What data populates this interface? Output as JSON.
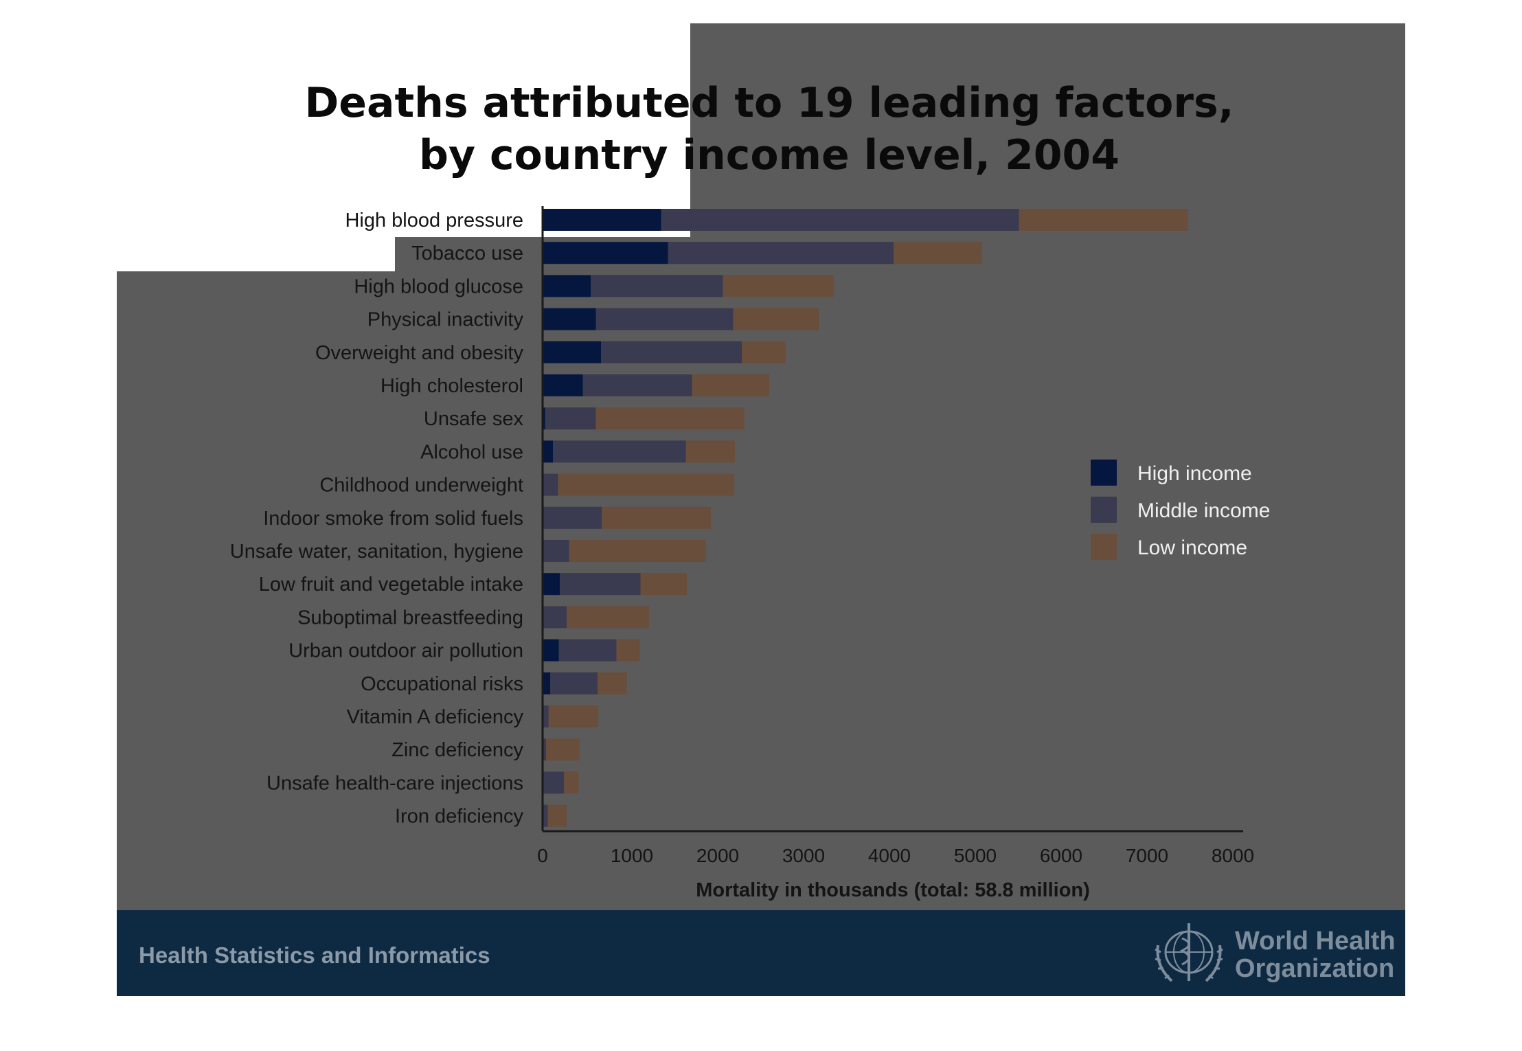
{
  "title_line1": "Deaths attributed to 19 leading factors,",
  "title_line2": "by country income level, 2004",
  "footer": {
    "left_text": "Health Statistics and Informatics",
    "org_line1": "World Health",
    "org_line2": "Organization"
  },
  "colors": {
    "high_income": "#05163f",
    "middle_income": "#3a3a50",
    "low_income": "#6a4e3c",
    "background_panel": "#5b5b5b",
    "footer_band": "#0e2a43"
  },
  "chart_data": {
    "type": "bar",
    "orientation": "horizontal",
    "stacked": true,
    "categories": [
      "High blood pressure",
      "Tobacco use",
      "High blood glucose",
      "Physical inactivity",
      "Overweight and obesity",
      "High cholesterol",
      "Unsafe sex",
      "Alcohol use",
      "Childhood underweight",
      "Indoor smoke from solid fuels",
      "Unsafe water, sanitation, hygiene",
      "Low fruit and vegetable intake",
      "Suboptimal breastfeeding",
      "Urban outdoor air pollution",
      "Occupational risks",
      "Vitamin A deficiency",
      "Zinc deficiency",
      "Unsafe health-care injections",
      "Iron deficiency"
    ],
    "series": [
      {
        "name": "High income",
        "values": [
          1380,
          1460,
          560,
          620,
          680,
          470,
          30,
          120,
          10,
          10,
          10,
          200,
          10,
          190,
          90,
          10,
          10,
          10,
          10
        ]
      },
      {
        "name": "Middle income",
        "values": [
          4170,
          2630,
          1540,
          1600,
          1640,
          1270,
          590,
          1550,
          170,
          680,
          300,
          940,
          270,
          670,
          550,
          60,
          30,
          240,
          50
        ]
      },
      {
        "name": "Low income",
        "values": [
          1970,
          1030,
          1290,
          1000,
          510,
          900,
          1730,
          570,
          2050,
          1270,
          1590,
          540,
          960,
          270,
          340,
          580,
          390,
          170,
          220
        ]
      }
    ],
    "x_ticks": [
      "0",
      "1000",
      "2000",
      "3000",
      "4000",
      "5000",
      "6000",
      "7000",
      "8000"
    ],
    "xlim": [
      0,
      8200
    ],
    "xlabel": "Mortality in thousands (total: 58.8 million)",
    "legend_position": "right",
    "grid": false
  }
}
